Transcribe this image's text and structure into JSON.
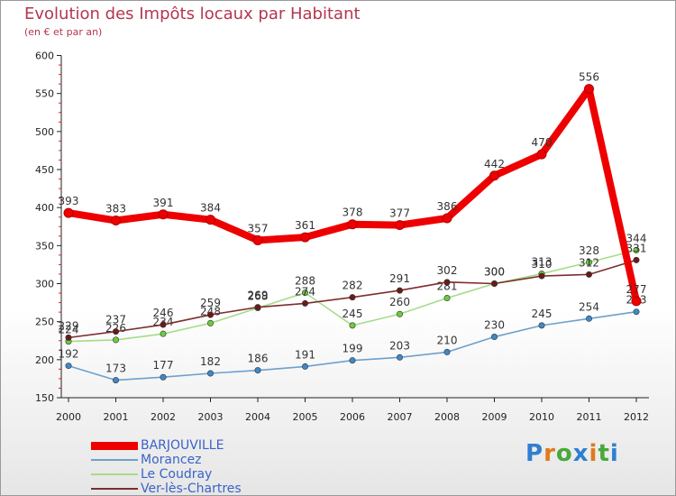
{
  "title": "Evolution des Impôts locaux par Habitant",
  "subtitle": "(en € et par an)",
  "logo": "Proxiti",
  "chart_data": {
    "type": "line",
    "title": "Evolution des Impôts locaux par Habitant",
    "ylabel": "(en € et par an)",
    "xlabel": "",
    "ylim": [
      150,
      600
    ],
    "yticks": [
      150,
      200,
      250,
      300,
      350,
      400,
      450,
      500,
      550,
      600
    ],
    "grid": false,
    "legend_position": "bottom-left",
    "x": [
      "2000",
      "2001",
      "2002",
      "2003",
      "2004",
      "2005",
      "2006",
      "2007",
      "2008",
      "2009",
      "2010",
      "2011",
      "2012"
    ],
    "series": [
      {
        "name": "BARJOUVILLE",
        "color": "#ee0000",
        "marker": "#ee0000",
        "emphasis": true,
        "values": [
          393,
          383,
          391,
          384,
          357,
          361,
          378,
          377,
          386,
          442,
          470,
          556,
          277
        ]
      },
      {
        "name": "Morancez",
        "color": "#6da0cd",
        "marker": "#3f88c9",
        "emphasis": false,
        "values": [
          192,
          173,
          177,
          182,
          186,
          191,
          199,
          203,
          210,
          230,
          245,
          254,
          263
        ]
      },
      {
        "name": "Le Coudray",
        "color": "#a6dc8a",
        "marker": "#6ccc3e",
        "emphasis": false,
        "values": [
          224,
          226,
          234,
          248,
          268,
          288,
          245,
          260,
          281,
          300,
          313,
          328,
          344
        ]
      },
      {
        "name": "Ver-lès-Chartres",
        "color": "#7d2d2d",
        "marker": "#6b1a1a",
        "emphasis": false,
        "values": [
          229,
          237,
          246,
          259,
          269,
          274,
          282,
          291,
          302,
          300,
          310,
          312,
          331
        ]
      }
    ]
  }
}
